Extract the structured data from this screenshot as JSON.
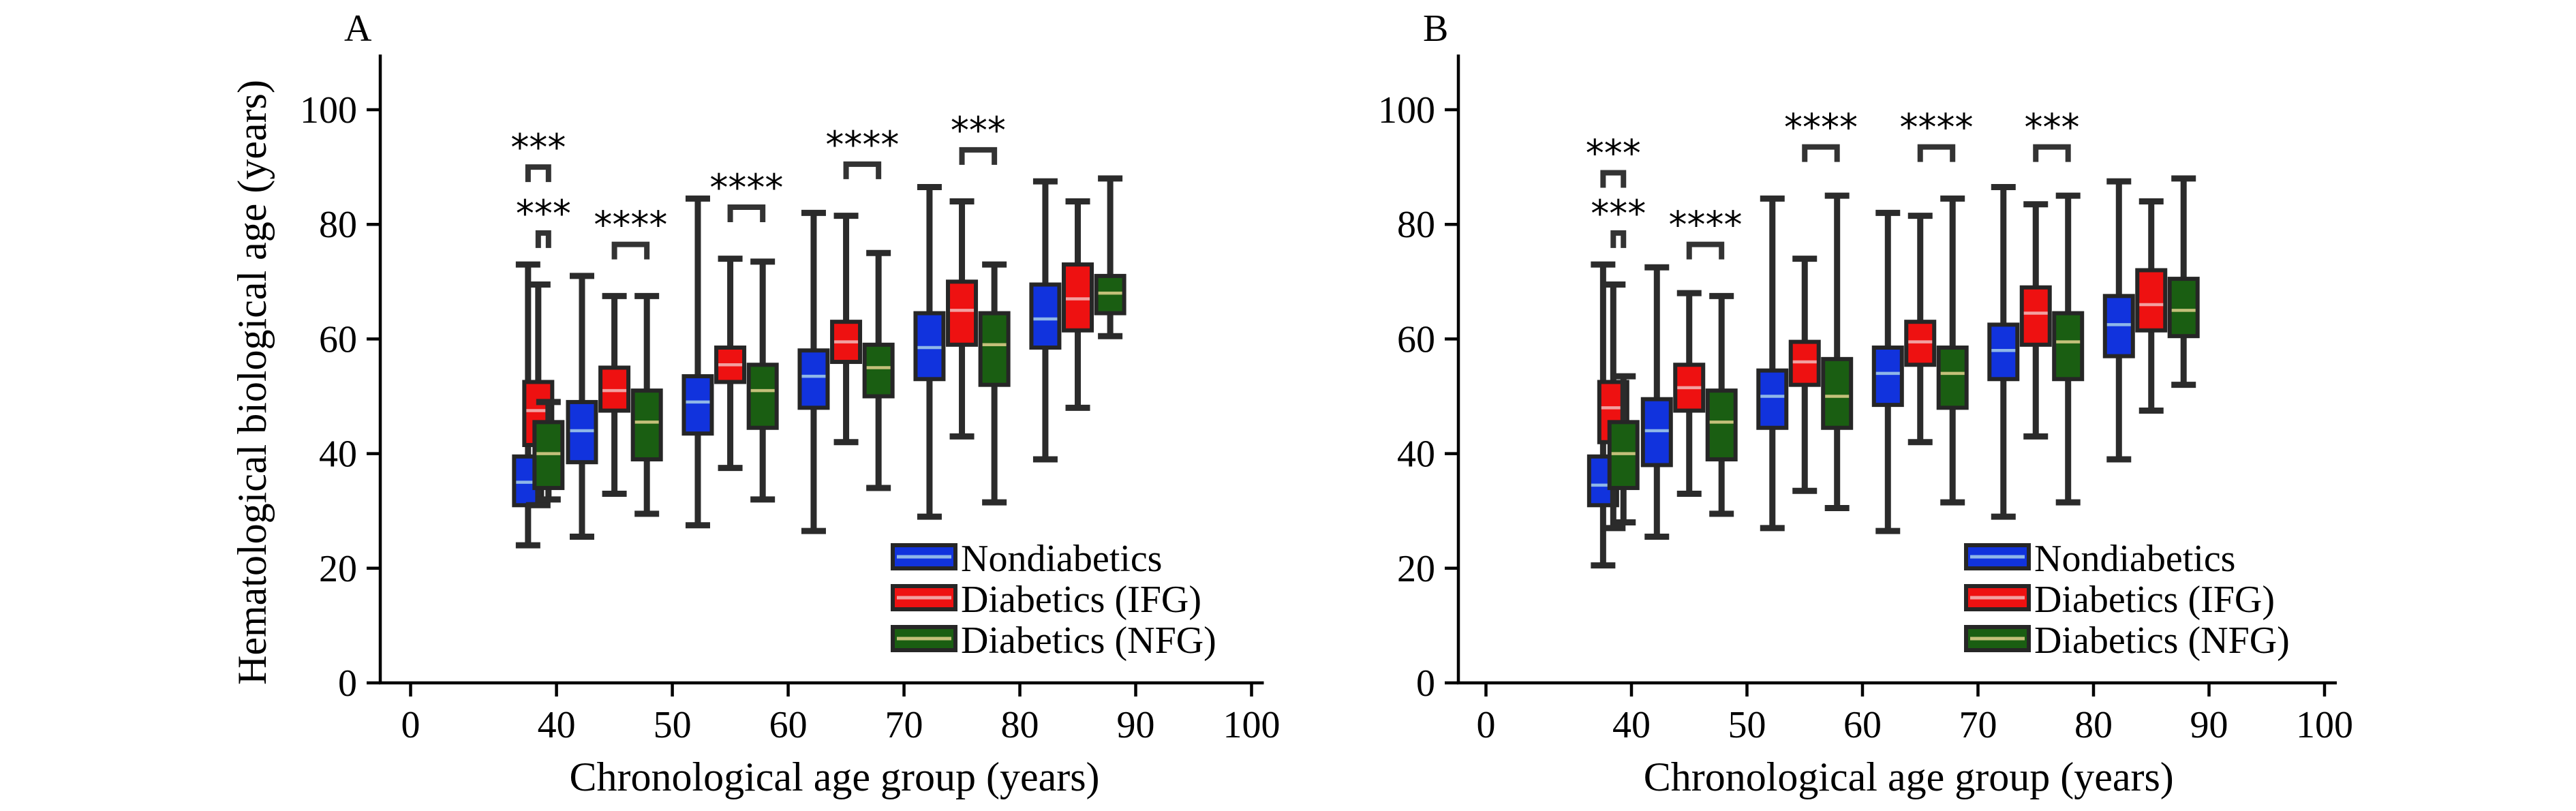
{
  "chart_data": [
    {
      "panel_label": "A",
      "type": "box",
      "ylabel": "Hematological biological age (years)",
      "xlabel": "Chronological age group (years)",
      "xlim": [
        0,
        100
      ],
      "ylim": [
        0,
        110
      ],
      "xticks": [
        0,
        40,
        50,
        60,
        70,
        80,
        90,
        100
      ],
      "yticks": [
        0,
        20,
        40,
        60,
        80,
        100
      ],
      "legend_position": "lower-right",
      "series": [
        {
          "name": "Nondiabetics",
          "color": "#1133dd",
          "median_color": "#8fb7e8"
        },
        {
          "name": "Diabetics (IFG)",
          "color": "#ee1111",
          "median_color": "#f2a0a0"
        },
        {
          "name": "Diabetics (NFG)",
          "color": "#1a5e12",
          "median_color": "#c4c07a"
        }
      ],
      "groups": [
        {
          "boxes": [
            {
              "series": 0,
              "x": 32.2,
              "min": 24,
              "q1": 31,
              "median": 35,
              "q3": 39.5,
              "max": 73
            },
            {
              "series": 1,
              "x": 35.0,
              "min": 31,
              "q1": 41.5,
              "median": 47.5,
              "q3": 52.5,
              "max": 69.5
            },
            {
              "series": 2,
              "x": 37.8,
              "min": 32,
              "q1": 34,
              "median": 40,
              "q3": 45.5,
              "max": 49
            }
          ]
        },
        {
          "boxes": [
            {
              "series": 0,
              "x": 42.2,
              "min": 25.5,
              "q1": 38.5,
              "median": 44,
              "q3": 49,
              "max": 71
            },
            {
              "series": 1,
              "x": 45.0,
              "min": 33,
              "q1": 47.5,
              "median": 51,
              "q3": 55,
              "max": 67.5
            },
            {
              "series": 2,
              "x": 47.8,
              "min": 29.5,
              "q1": 39,
              "median": 45.5,
              "q3": 51,
              "max": 67.5
            }
          ]
        },
        {
          "boxes": [
            {
              "series": 0,
              "x": 52.2,
              "min": 27.5,
              "q1": 43.5,
              "median": 49,
              "q3": 53.5,
              "max": 84.5
            },
            {
              "series": 1,
              "x": 55.0,
              "min": 37.5,
              "q1": 52.5,
              "median": 55.5,
              "q3": 58.5,
              "max": 74
            },
            {
              "series": 2,
              "x": 57.8,
              "min": 32,
              "q1": 44.5,
              "median": 51,
              "q3": 55.5,
              "max": 73.5
            }
          ]
        },
        {
          "boxes": [
            {
              "series": 0,
              "x": 62.2,
              "min": 26.5,
              "q1": 48,
              "median": 53.5,
              "q3": 58,
              "max": 82
            },
            {
              "series": 1,
              "x": 65.0,
              "min": 42,
              "q1": 56,
              "median": 59.5,
              "q3": 63,
              "max": 81.5
            },
            {
              "series": 2,
              "x": 67.8,
              "min": 34,
              "q1": 50,
              "median": 55,
              "q3": 59,
              "max": 75
            }
          ]
        },
        {
          "boxes": [
            {
              "series": 0,
              "x": 72.2,
              "min": 29,
              "q1": 53,
              "median": 58.5,
              "q3": 64.5,
              "max": 86.5
            },
            {
              "series": 1,
              "x": 75.0,
              "min": 43,
              "q1": 59,
              "median": 65,
              "q3": 70,
              "max": 84
            },
            {
              "series": 2,
              "x": 77.8,
              "min": 31.5,
              "q1": 52,
              "median": 59,
              "q3": 64.5,
              "max": 73
            }
          ]
        },
        {
          "boxes": [
            {
              "series": 0,
              "x": 82.2,
              "min": 39,
              "q1": 58.5,
              "median": 63.5,
              "q3": 69.5,
              "max": 87.5
            },
            {
              "series": 1,
              "x": 85.0,
              "min": 48,
              "q1": 61.5,
              "median": 67,
              "q3": 73,
              "max": 84
            },
            {
              "series": 2,
              "x": 87.8,
              "min": 60.5,
              "q1": 64.5,
              "median": 68,
              "q3": 71,
              "max": 88
            }
          ]
        }
      ],
      "significance": [
        {
          "from_x": 32.2,
          "to_x": 37.8,
          "y": 90,
          "label": "***"
        },
        {
          "from_x": 35.0,
          "to_x": 37.8,
          "y": 78.5,
          "label": "***"
        },
        {
          "from_x": 45.0,
          "to_x": 47.8,
          "y": 76.5,
          "label": "****"
        },
        {
          "from_x": 55.0,
          "to_x": 57.8,
          "y": 83,
          "label": "****"
        },
        {
          "from_x": 65.0,
          "to_x": 67.8,
          "y": 90.5,
          "label": "****"
        },
        {
          "from_x": 75.0,
          "to_x": 77.8,
          "y": 93,
          "label": "***"
        }
      ]
    },
    {
      "panel_label": "B",
      "type": "box",
      "ylabel": "",
      "xlabel": "Chronological age group (years)",
      "xlim": [
        0,
        100
      ],
      "ylim": [
        0,
        110
      ],
      "xticks": [
        0,
        40,
        50,
        60,
        70,
        80,
        90,
        100
      ],
      "yticks": [
        0,
        20,
        40,
        60,
        80,
        100
      ],
      "legend_position": "lower-right",
      "series": [
        {
          "name": "Nondiabetics",
          "color": "#1133dd",
          "median_color": "#8fb7e8"
        },
        {
          "name": "Diabetics (IFG)",
          "color": "#ee1111",
          "median_color": "#f2a0a0"
        },
        {
          "name": "Diabetics (NFG)",
          "color": "#1a5e12",
          "median_color": "#c4c07a"
        }
      ],
      "groups": [
        {
          "boxes": [
            {
              "series": 0,
              "x": 32.2,
              "min": 20.5,
              "q1": 31,
              "median": 34.5,
              "q3": 39.5,
              "max": 73
            },
            {
              "series": 1,
              "x": 35.0,
              "min": 27,
              "q1": 42,
              "median": 48,
              "q3": 52.5,
              "max": 69.5
            },
            {
              "series": 2,
              "x": 37.8,
              "min": 28,
              "q1": 34,
              "median": 40,
              "q3": 45.5,
              "max": 53.5
            }
          ]
        },
        {
          "boxes": [
            {
              "series": 0,
              "x": 42.2,
              "min": 25.5,
              "q1": 38,
              "median": 44,
              "q3": 49.5,
              "max": 72.5
            },
            {
              "series": 1,
              "x": 45.0,
              "min": 33,
              "q1": 47.5,
              "median": 51.5,
              "q3": 55.5,
              "max": 68
            },
            {
              "series": 2,
              "x": 47.8,
              "min": 29.5,
              "q1": 39,
              "median": 45.5,
              "q3": 51,
              "max": 67.5
            }
          ]
        },
        {
          "boxes": [
            {
              "series": 0,
              "x": 52.2,
              "min": 27,
              "q1": 44.5,
              "median": 50,
              "q3": 54.5,
              "max": 84.5
            },
            {
              "series": 1,
              "x": 55.0,
              "min": 33.5,
              "q1": 52,
              "median": 56,
              "q3": 59.5,
              "max": 74
            },
            {
              "series": 2,
              "x": 57.8,
              "min": 30.5,
              "q1": 44.5,
              "median": 50,
              "q3": 56.5,
              "max": 85
            }
          ]
        },
        {
          "boxes": [
            {
              "series": 0,
              "x": 62.2,
              "min": 26.5,
              "q1": 48.5,
              "median": 54,
              "q3": 58.5,
              "max": 82
            },
            {
              "series": 1,
              "x": 65.0,
              "min": 42,
              "q1": 55.5,
              "median": 59.5,
              "q3": 63,
              "max": 81.5
            },
            {
              "series": 2,
              "x": 67.8,
              "min": 31.5,
              "q1": 48,
              "median": 54,
              "q3": 58.5,
              "max": 84.5
            }
          ]
        },
        {
          "boxes": [
            {
              "series": 0,
              "x": 72.2,
              "min": 29,
              "q1": 53,
              "median": 58,
              "q3": 62.5,
              "max": 86.5
            },
            {
              "series": 1,
              "x": 75.0,
              "min": 43,
              "q1": 59,
              "median": 64.5,
              "q3": 69,
              "max": 83.5
            },
            {
              "series": 2,
              "x": 77.8,
              "min": 31.5,
              "q1": 53,
              "median": 59.5,
              "q3": 64.5,
              "max": 85
            }
          ]
        },
        {
          "boxes": [
            {
              "series": 0,
              "x": 82.2,
              "min": 39,
              "q1": 57,
              "median": 62.5,
              "q3": 67.5,
              "max": 87.5
            },
            {
              "series": 1,
              "x": 85.0,
              "min": 47.5,
              "q1": 61.5,
              "median": 66,
              "q3": 72,
              "max": 84
            },
            {
              "series": 2,
              "x": 87.8,
              "min": 52,
              "q1": 60.5,
              "median": 65,
              "q3": 70.5,
              "max": 88
            }
          ]
        }
      ],
      "significance": [
        {
          "from_x": 32.2,
          "to_x": 37.8,
          "y": 89,
          "label": "***"
        },
        {
          "from_x": 35.0,
          "to_x": 37.8,
          "y": 78.5,
          "label": "***"
        },
        {
          "from_x": 45.0,
          "to_x": 47.8,
          "y": 76.5,
          "label": "****"
        },
        {
          "from_x": 55.0,
          "to_x": 57.8,
          "y": 93.5,
          "label": "****"
        },
        {
          "from_x": 65.0,
          "to_x": 67.8,
          "y": 93.5,
          "label": "****"
        },
        {
          "from_x": 75.0,
          "to_x": 77.8,
          "y": 93.5,
          "label": "***"
        }
      ]
    }
  ]
}
